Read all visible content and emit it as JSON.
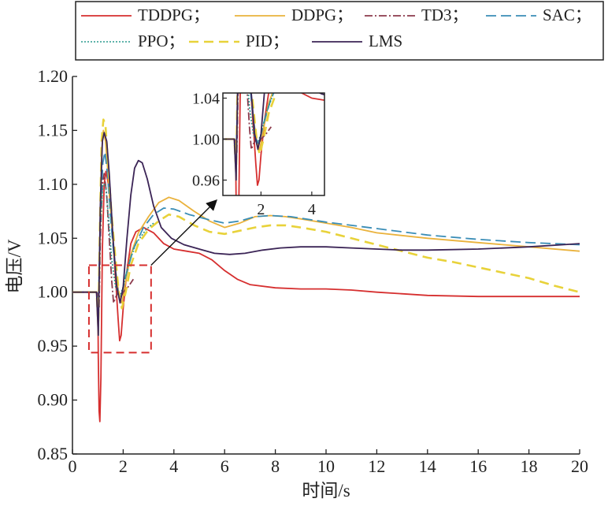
{
  "chart_data": {
    "type": "line",
    "title": "",
    "xlabel": "时间/s",
    "ylabel": "电压/V",
    "xlim": [
      0,
      20
    ],
    "ylim": [
      0.85,
      1.2
    ],
    "xticks": [
      0,
      2,
      4,
      6,
      8,
      10,
      12,
      14,
      16,
      18,
      20
    ],
    "yticks": [
      0.85,
      0.9,
      0.95,
      1.0,
      1.05,
      1.1,
      1.15,
      1.2
    ],
    "xtick_labels": [
      "0",
      "2",
      "4",
      "6",
      "8",
      "10",
      "12",
      "14",
      "16",
      "18",
      "20"
    ],
    "ytick_labels": [
      "0.85",
      "0.90",
      "0.95",
      "1.00",
      "1.05",
      "1.10",
      "1.15",
      "1.20"
    ],
    "grid": false,
    "legend_position": "top",
    "legend_labels": [
      "TDDPG；",
      "DDPG；",
      "TD3；",
      "SAC；",
      "PPO；",
      "PID；",
      "LMS"
    ],
    "series": [
      {
        "name": "TDDPG",
        "color": "#d62f2f",
        "dash": "solid",
        "points": [
          [
            0,
            1.0
          ],
          [
            0.95,
            1.0
          ],
          [
            1.0,
            0.998
          ],
          [
            1.02,
            0.94
          ],
          [
            1.05,
            0.89
          ],
          [
            1.08,
            0.88
          ],
          [
            1.12,
            0.92
          ],
          [
            1.18,
            1.04
          ],
          [
            1.25,
            1.1
          ],
          [
            1.32,
            1.112
          ],
          [
            1.42,
            1.1
          ],
          [
            1.52,
            1.075
          ],
          [
            1.62,
            1.04
          ],
          [
            1.72,
            1.005
          ],
          [
            1.8,
            0.975
          ],
          [
            1.86,
            0.955
          ],
          [
            1.92,
            0.96
          ],
          [
            2.0,
            0.985
          ],
          [
            2.15,
            1.02
          ],
          [
            2.3,
            1.045
          ],
          [
            2.5,
            1.056
          ],
          [
            2.8,
            1.06
          ],
          [
            3.2,
            1.055
          ],
          [
            3.6,
            1.045
          ],
          [
            4.0,
            1.04
          ],
          [
            4.5,
            1.038
          ],
          [
            5.0,
            1.036
          ],
          [
            5.5,
            1.03
          ],
          [
            6.0,
            1.02
          ],
          [
            6.5,
            1.012
          ],
          [
            7.0,
            1.007
          ],
          [
            8.0,
            1.004
          ],
          [
            9.0,
            1.003
          ],
          [
            10.0,
            1.003
          ],
          [
            11.0,
            1.002
          ],
          [
            12.0,
            1.0
          ],
          [
            14.0,
            0.997
          ],
          [
            16.0,
            0.996
          ],
          [
            18.0,
            0.996
          ],
          [
            20.0,
            0.996
          ]
        ]
      },
      {
        "name": "DDPG",
        "color": "#eab23c",
        "dash": "solid",
        "points": [
          [
            0,
            1.0
          ],
          [
            0.95,
            1.0
          ],
          [
            1.02,
            0.96
          ],
          [
            1.08,
            1.05
          ],
          [
            1.15,
            1.13
          ],
          [
            1.22,
            1.15
          ],
          [
            1.3,
            1.14
          ],
          [
            1.4,
            1.11
          ],
          [
            1.55,
            1.06
          ],
          [
            1.7,
            1.02
          ],
          [
            1.85,
            0.995
          ],
          [
            1.95,
            0.99
          ],
          [
            2.1,
            1.01
          ],
          [
            2.3,
            1.035
          ],
          [
            2.6,
            1.055
          ],
          [
            3.0,
            1.07
          ],
          [
            3.4,
            1.083
          ],
          [
            3.8,
            1.088
          ],
          [
            4.2,
            1.085
          ],
          [
            4.8,
            1.075
          ],
          [
            5.4,
            1.066
          ],
          [
            6.0,
            1.06
          ],
          [
            6.6,
            1.064
          ],
          [
            7.2,
            1.07
          ],
          [
            7.8,
            1.071
          ],
          [
            8.4,
            1.07
          ],
          [
            9.0,
            1.068
          ],
          [
            10.0,
            1.064
          ],
          [
            11.0,
            1.06
          ],
          [
            12.0,
            1.055
          ],
          [
            14.0,
            1.05
          ],
          [
            16.0,
            1.046
          ],
          [
            18.0,
            1.042
          ],
          [
            20.0,
            1.038
          ]
        ]
      },
      {
        "name": "TD3",
        "color": "#8c3a4c",
        "dash": "10 3 2 3",
        "points": [
          [
            0,
            1.0
          ],
          [
            0.95,
            1.0
          ],
          [
            1.0,
            0.985
          ],
          [
            1.05,
            0.985
          ],
          [
            1.1,
            1.05
          ],
          [
            1.18,
            1.1
          ],
          [
            1.25,
            1.11
          ],
          [
            1.35,
            1.09
          ],
          [
            1.45,
            1.05
          ],
          [
            1.55,
            1.01
          ],
          [
            1.62,
            0.99
          ],
          [
            1.7,
            0.995
          ],
          [
            1.8,
            1.0
          ],
          [
            1.9,
            0.995
          ],
          [
            2.0,
            1.0
          ],
          [
            2.2,
            1.005
          ],
          [
            2.4,
            1.012
          ]
        ]
      },
      {
        "name": "SAC",
        "color": "#3a8db6",
        "dash": "13 6",
        "points": [
          [
            0,
            1.0
          ],
          [
            0.95,
            1.0
          ],
          [
            1.02,
            0.98
          ],
          [
            1.1,
            1.07
          ],
          [
            1.2,
            1.12
          ],
          [
            1.28,
            1.13
          ],
          [
            1.38,
            1.11
          ],
          [
            1.5,
            1.07
          ],
          [
            1.65,
            1.03
          ],
          [
            1.8,
            1.0
          ],
          [
            1.92,
            0.995
          ],
          [
            2.1,
            1.015
          ],
          [
            2.4,
            1.04
          ],
          [
            2.8,
            1.06
          ],
          [
            3.2,
            1.072
          ],
          [
            3.6,
            1.078
          ],
          [
            4.0,
            1.077
          ],
          [
            4.6,
            1.072
          ],
          [
            5.4,
            1.067
          ],
          [
            6.0,
            1.064
          ],
          [
            6.6,
            1.066
          ],
          [
            7.2,
            1.07
          ],
          [
            7.8,
            1.071
          ],
          [
            8.6,
            1.07
          ],
          [
            10.0,
            1.065
          ],
          [
            12.0,
            1.059
          ],
          [
            14.0,
            1.053
          ],
          [
            16.0,
            1.049
          ],
          [
            18.0,
            1.046
          ],
          [
            20.0,
            1.044
          ]
        ]
      },
      {
        "name": "PPO",
        "color": "#2c9a8f",
        "dash": "2 2",
        "points": [
          [
            0,
            1.0
          ],
          [
            0.95,
            1.0
          ],
          [
            1.02,
            0.99
          ],
          [
            1.1,
            1.06
          ],
          [
            1.2,
            1.1
          ],
          [
            1.3,
            1.1
          ],
          [
            1.42,
            1.07
          ],
          [
            1.55,
            1.03
          ],
          [
            1.7,
            1.005
          ],
          [
            1.85,
            0.995
          ],
          [
            2.0,
            1.005
          ],
          [
            2.2,
            1.025
          ],
          [
            2.5,
            1.045
          ],
          [
            2.9,
            1.058
          ],
          [
            3.2,
            1.064
          ]
        ]
      },
      {
        "name": "PID",
        "color": "#e8d23a",
        "dash": "12 7",
        "points": [
          [
            0,
            1.0
          ],
          [
            0.95,
            1.0
          ],
          [
            1.02,
            0.97
          ],
          [
            1.08,
            1.06
          ],
          [
            1.15,
            1.14
          ],
          [
            1.22,
            1.16
          ],
          [
            1.3,
            1.155
          ],
          [
            1.4,
            1.12
          ],
          [
            1.55,
            1.07
          ],
          [
            1.7,
            1.03
          ],
          [
            1.85,
            0.995
          ],
          [
            1.95,
            0.985
          ],
          [
            2.1,
            1.0
          ],
          [
            2.3,
            1.025
          ],
          [
            2.6,
            1.045
          ],
          [
            3.0,
            1.058
          ],
          [
            3.4,
            1.066
          ],
          [
            3.8,
            1.072
          ],
          [
            4.2,
            1.07
          ],
          [
            4.8,
            1.062
          ],
          [
            5.4,
            1.056
          ],
          [
            6.0,
            1.054
          ],
          [
            6.6,
            1.057
          ],
          [
            7.2,
            1.06
          ],
          [
            7.8,
            1.062
          ],
          [
            8.4,
            1.062
          ],
          [
            9.0,
            1.06
          ],
          [
            10.0,
            1.056
          ],
          [
            11.0,
            1.05
          ],
          [
            12.0,
            1.044
          ],
          [
            13.0,
            1.038
          ],
          [
            14.0,
            1.032
          ],
          [
            15.0,
            1.028
          ],
          [
            16.0,
            1.023
          ],
          [
            17.0,
            1.018
          ],
          [
            18.0,
            1.013
          ],
          [
            19.0,
            1.006
          ],
          [
            20.0,
            1.0
          ]
        ]
      },
      {
        "name": "LMS",
        "color": "#3b2456",
        "dash": "solid",
        "points": [
          [
            0,
            1.0
          ],
          [
            0.95,
            1.0
          ],
          [
            1.02,
            0.96
          ],
          [
            1.1,
            1.08
          ],
          [
            1.18,
            1.14
          ],
          [
            1.25,
            1.148
          ],
          [
            1.35,
            1.14
          ],
          [
            1.45,
            1.11
          ],
          [
            1.6,
            1.05
          ],
          [
            1.75,
            1.005
          ],
          [
            1.88,
            0.99
          ],
          [
            2.0,
            1.005
          ],
          [
            2.15,
            1.05
          ],
          [
            2.3,
            1.09
          ],
          [
            2.45,
            1.115
          ],
          [
            2.6,
            1.122
          ],
          [
            2.75,
            1.12
          ],
          [
            2.95,
            1.105
          ],
          [
            3.2,
            1.08
          ],
          [
            3.5,
            1.06
          ],
          [
            3.9,
            1.05
          ],
          [
            4.4,
            1.044
          ],
          [
            5.0,
            1.04
          ],
          [
            5.6,
            1.036
          ],
          [
            6.2,
            1.035
          ],
          [
            6.8,
            1.036
          ],
          [
            7.5,
            1.039
          ],
          [
            8.2,
            1.041
          ],
          [
            9.0,
            1.042
          ],
          [
            10.0,
            1.042
          ],
          [
            11.0,
            1.041
          ],
          [
            12.0,
            1.04
          ],
          [
            13.0,
            1.039
          ],
          [
            14.0,
            1.039
          ],
          [
            16.0,
            1.04
          ],
          [
            18.0,
            1.042
          ],
          [
            20.0,
            1.045
          ]
        ]
      }
    ],
    "annotation": {
      "zoom_box_x": [
        0.65,
        3.1
      ],
      "zoom_box_y": [
        0.944,
        1.025
      ],
      "zoom_box_color": "#d62f2f"
    },
    "inset": {
      "xlim": [
        0.5,
        4.5
      ],
      "ylim": [
        0.945,
        1.045
      ],
      "xticks": [
        2,
        4
      ],
      "yticks": [
        0.96,
        1.0,
        1.04
      ],
      "xtick_labels": [
        "2",
        "4"
      ],
      "ytick_labels": [
        "0.96",
        "1.00",
        "1.04"
      ]
    }
  }
}
